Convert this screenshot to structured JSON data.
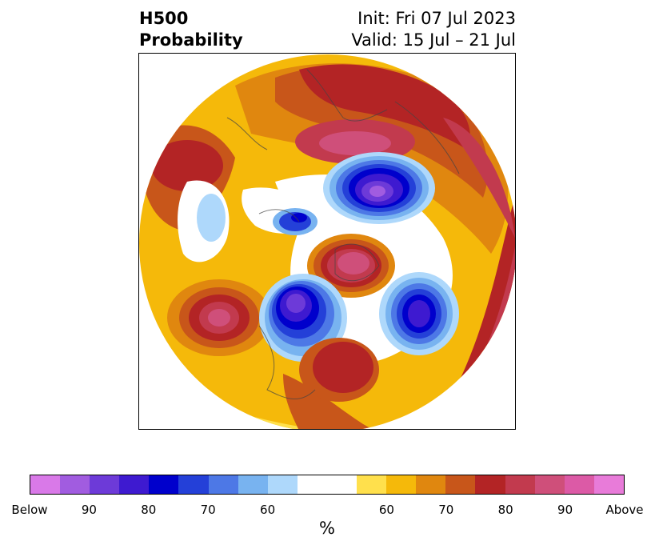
{
  "title": {
    "left_line1": "H500",
    "left_line2": "Probability",
    "right_line1": "Init: Fri 07 Jul 2023",
    "right_line2": "Valid: 15 Jul – 21 Jul"
  },
  "colorbar": {
    "unit": "%",
    "colors": [
      "#d979e8",
      "#a15ce0",
      "#6d3ad8",
      "#3e1ad0",
      "#0000cc",
      "#2440d8",
      "#4d78e6",
      "#78b3f0",
      "#aed8fb",
      "#ffffff",
      "#ffe04c",
      "#f5b90a",
      "#e0870f",
      "#c8561a",
      "#b32425",
      "#c23a4e",
      "#cf4f7a",
      "#dc5aa6",
      "#e87bd9"
    ],
    "tick_labels": [
      "Below",
      "90",
      "80",
      "70",
      "60",
      "60",
      "70",
      "80",
      "90",
      "Above"
    ]
  },
  "map": {
    "background_color": "#ffffff",
    "features": [
      {
        "name": "above-normal-north-pacific-alaska",
        "category": "Above",
        "level": "above-90"
      },
      {
        "name": "below-normal-hudson-bay",
        "category": "Below",
        "level": "below-90"
      },
      {
        "name": "below-normal-scandinavia",
        "category": "Below",
        "level": "below-90"
      },
      {
        "name": "below-normal-north-atlantic",
        "category": "Below",
        "level": "below-80"
      },
      {
        "name": "above-normal-greenland",
        "category": "Above",
        "level": "above-90"
      },
      {
        "name": "above-normal-eastern-us",
        "category": "Above",
        "level": "above-80"
      },
      {
        "name": "above-normal-central-pacific",
        "category": "Above",
        "level": "above-90"
      },
      {
        "name": "above-normal-siberia",
        "category": "Above",
        "level": "above-80"
      }
    ]
  }
}
